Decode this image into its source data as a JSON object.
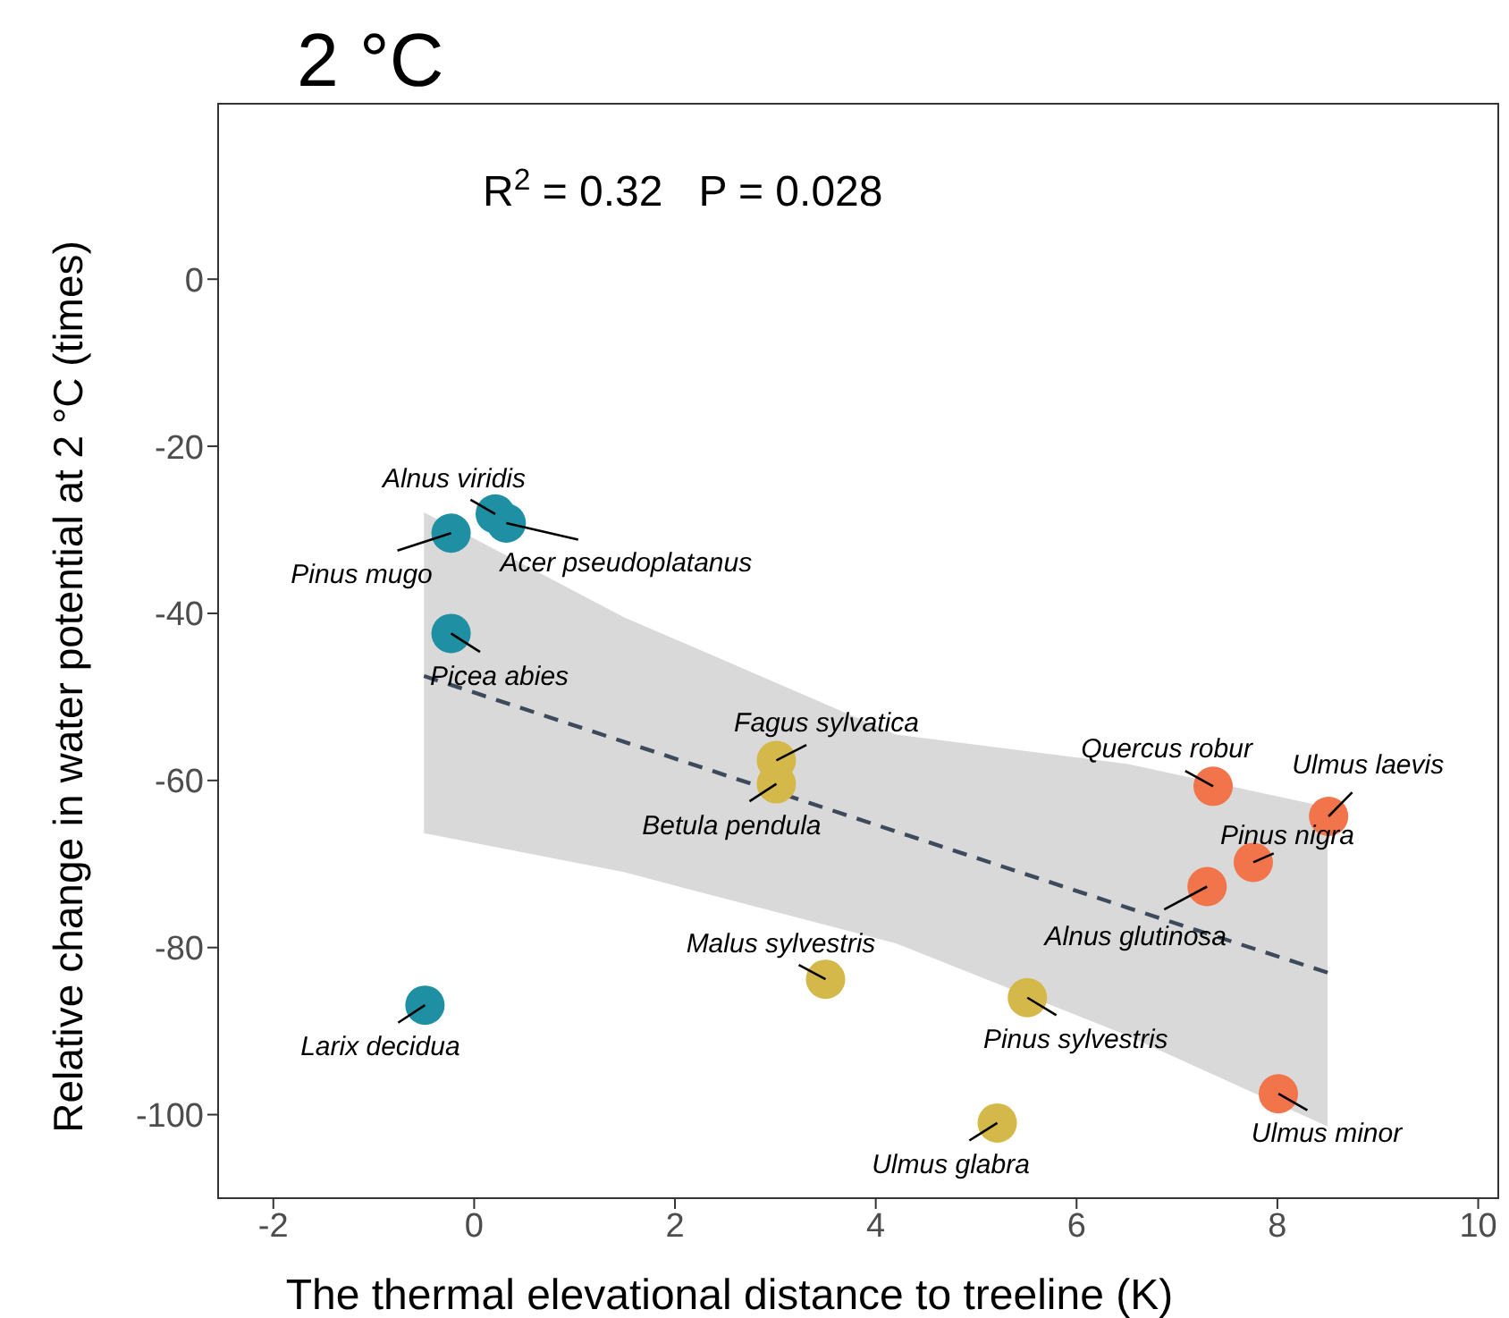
{
  "chart_data": {
    "type": "scatter",
    "title": "2 °C",
    "xlabel": "The thermal elevational distance to treeline (K)",
    "ylabel": "Relative change in  water potential at 2 °C (times)",
    "xlim": [
      -2.55,
      10.2
    ],
    "ylim": [
      -110,
      21
    ],
    "xticks": [
      -2,
      0,
      2,
      4,
      6,
      8,
      10
    ],
    "yticks": [
      -100,
      -80,
      -60,
      -40,
      -20,
      0
    ],
    "grid": false,
    "marker": "circle",
    "series": [
      {
        "color": "#1f8fa3",
        "x": [
          0.21,
          0.32,
          -0.23,
          -0.23,
          -0.49
        ],
        "values": [
          -28.1,
          -29.2,
          -30.4,
          -42.4,
          -86.9
        ]
      },
      {
        "color": "#d4b84a",
        "x": [
          3.01,
          3.01,
          3.5,
          5.51,
          5.21
        ],
        "values": [
          -57.6,
          -60.4,
          -83.8,
          -86.0,
          -101.0
        ]
      },
      {
        "color": "#f1744b",
        "x": [
          7.36,
          8.51,
          7.76,
          7.3,
          8.01
        ],
        "values": [
          -60.7,
          -64.3,
          -69.8,
          -72.7,
          -97.5
        ]
      },
      {
        "type": "line",
        "color": "#3d4a5c",
        "line_style": "dashed",
        "marker": "none",
        "x": [
          -0.5,
          1.5,
          4.2,
          6.5,
          8.5
        ],
        "values": [
          -47.5,
          -55.4,
          -66.1,
          -75.2,
          -83.0
        ],
        "lower": [
          -66.3,
          -71.0,
          -79.5,
          -90.5,
          -101.4
        ],
        "upper": [
          -27.9,
          -40.5,
          -54.5,
          -58.0,
          -63.2
        ]
      }
    ],
    "annotations": [
      "R$^{2}$ = 0.32   P = 0.028",
      {
        "text": "Alnus viridis",
        "x": 0.21,
        "y": -28.1
      },
      {
        "text": "Acer pseudoplatanus",
        "x": 0.32,
        "y": -29.2
      },
      {
        "text": "Pinus mugo",
        "x": -0.23,
        "y": -30.4
      },
      {
        "text": "Picea abies",
        "x": -0.23,
        "y": -42.4
      },
      {
        "text": "Larix decidua",
        "x": -0.49,
        "y": -86.9
      },
      {
        "text": "Fagus sylvatica",
        "x": 3.01,
        "y": -57.6
      },
      {
        "text": "Betula pendula",
        "x": 3.01,
        "y": -60.4
      },
      {
        "text": "Malus sylvestris",
        "x": 3.5,
        "y": -83.8
      },
      {
        "text": "Pinus sylvestris",
        "x": 5.51,
        "y": -86.0
      },
      {
        "text": "Ulmus glabra",
        "x": 5.21,
        "y": -101.0
      },
      {
        "text": "Quercus robur",
        "x": 7.36,
        "y": -60.7
      },
      {
        "text": "Ulmus laevis",
        "x": 8.51,
        "y": -64.3
      },
      {
        "text": "Pinus nigra",
        "x": 7.76,
        "y": -69.8
      },
      {
        "text": "Alnus glutinosa",
        "x": 7.3,
        "y": -72.7
      },
      {
        "text": "Ulmus minor",
        "x": 8.01,
        "y": -97.5
      }
    ]
  }
}
